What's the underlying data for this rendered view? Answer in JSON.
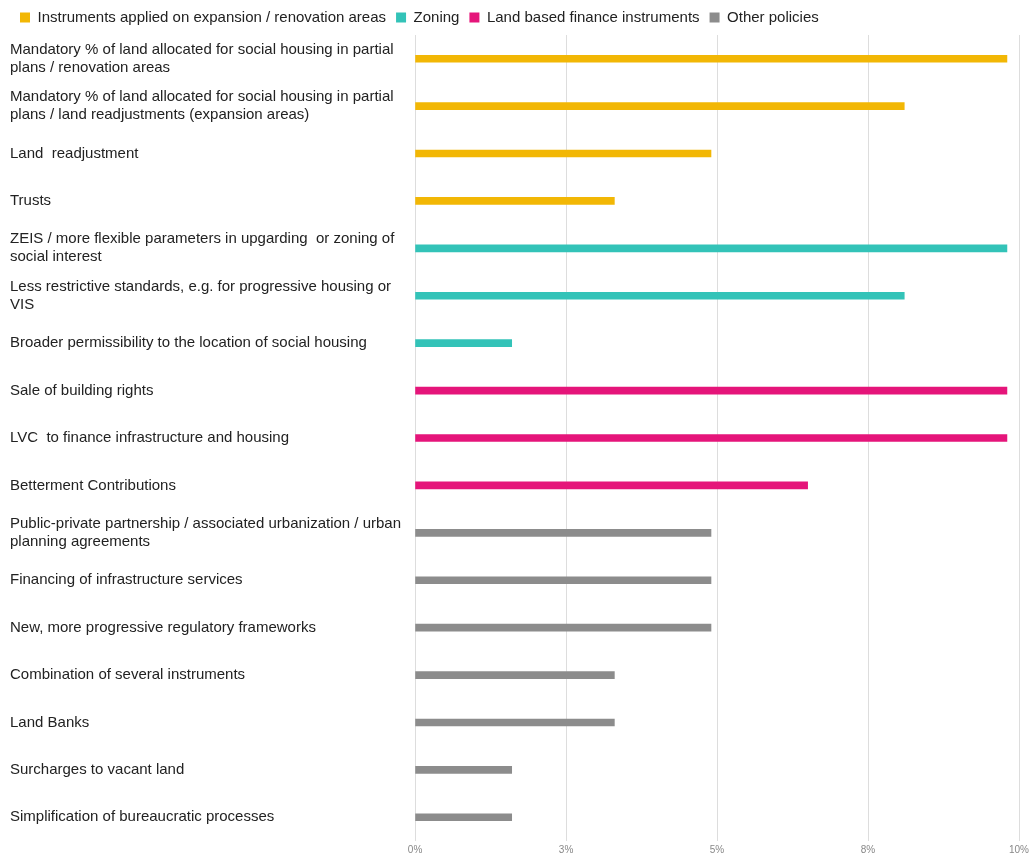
{
  "chart_data": {
    "type": "bar",
    "orientation": "horizontal",
    "categories": [
      "Mandatory % of land allocated for social housing in partial plans / renovation areas",
      "Mandatory % of land allocated for social housing in partial plans / land readjustments (expansion areas)",
      "Land  readjustment",
      "Trusts",
      "ZEIS / more flexible parameters in upgarding  or zoning of social interest",
      "Less restrictive standards, e.g. for progressive housing or VIS",
      "Broader permissibility to the location of social housing",
      "Sale of building rights",
      "LVC  to finance infrastructure and housing",
      "Betterment Contributions",
      "Public-private partnership / associated urbanization / urban planning agreements",
      "Financing of infrastructure services",
      "New, more progressive regulatory frameworks",
      "Combination of several instruments",
      "Land Banks",
      "Surcharges to vacant land",
      "Simplification of bureaucratic processes"
    ],
    "series": [
      {
        "name": "Instruments applied on expansion / renovation areas",
        "color": "#f2b705",
        "values": [
          9.8,
          8.1,
          4.9,
          3.3,
          null,
          null,
          null,
          null,
          null,
          null,
          null,
          null,
          null,
          null,
          null,
          null,
          null
        ]
      },
      {
        "name": "Zoning",
        "color": "#33c3b8",
        "values": [
          null,
          null,
          null,
          null,
          9.8,
          8.1,
          1.6,
          null,
          null,
          null,
          null,
          null,
          null,
          null,
          null,
          null,
          null
        ]
      },
      {
        "name": "Land based finance instruments",
        "color": "#e5157a",
        "values": [
          null,
          null,
          null,
          null,
          null,
          null,
          null,
          9.8,
          9.8,
          6.5,
          null,
          null,
          null,
          null,
          null,
          null,
          null
        ]
      },
      {
        "name": "Other policies",
        "color": "#8c8c8c",
        "values": [
          null,
          null,
          null,
          null,
          null,
          null,
          null,
          null,
          null,
          null,
          4.9,
          4.9,
          4.9,
          3.3,
          3.3,
          1.6,
          1.6
        ]
      }
    ],
    "xlim": [
      0,
      10
    ],
    "xticks": [
      {
        "value": 0,
        "label": "0%"
      },
      {
        "value": 2.5,
        "label": "3%"
      },
      {
        "value": 5,
        "label": "5%"
      },
      {
        "value": 7.5,
        "label": "8%"
      },
      {
        "value": 10,
        "label": "10%"
      }
    ],
    "grid": "x",
    "legend": "top left"
  }
}
